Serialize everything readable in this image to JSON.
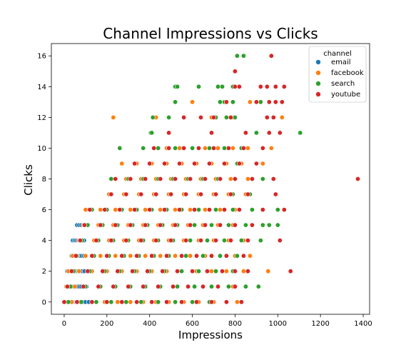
{
  "chart_data": {
    "type": "scatter",
    "title": "Channel Impressions vs Clicks",
    "xlabel": "Impressions",
    "ylabel": "Clicks",
    "xlim": [
      -60,
      1430
    ],
    "ylim": [
      -0.8,
      16.8
    ],
    "xticks": [
      0,
      200,
      400,
      600,
      800,
      1000,
      1200,
      1400
    ],
    "yticks": [
      0,
      2,
      4,
      6,
      8,
      10,
      12,
      14,
      16
    ],
    "grid": false,
    "legend": {
      "title": "channel",
      "placement": "top-right"
    },
    "series": [
      {
        "name": "email",
        "color": "#1f77b4",
        "x": [
          2,
          6,
          10,
          14,
          18,
          22,
          26,
          30,
          34,
          38,
          42,
          46,
          50,
          54,
          58,
          62,
          70,
          80,
          90,
          100,
          115,
          8,
          14,
          20,
          26,
          32,
          38,
          44,
          50,
          56,
          62,
          70,
          80,
          90,
          105,
          14,
          20,
          26,
          32,
          38,
          44,
          50,
          58,
          66,
          74,
          84,
          95,
          110,
          35,
          42,
          50,
          58,
          66,
          74,
          82,
          92,
          40,
          48,
          56,
          64,
          72,
          82,
          94,
          60,
          70,
          80,
          90,
          100,
          112,
          115
        ],
        "y": [
          0,
          0,
          0,
          0,
          0,
          0,
          0,
          0,
          0,
          0,
          0,
          0,
          0,
          0,
          0,
          0,
          0,
          0,
          0,
          0,
          0,
          1,
          1,
          1,
          1,
          1,
          1,
          1,
          1,
          1,
          1,
          1,
          1,
          1,
          1,
          2,
          2,
          2,
          2,
          2,
          2,
          2,
          2,
          2,
          2,
          2,
          2,
          2,
          3,
          3,
          3,
          3,
          3,
          3,
          3,
          3,
          4,
          4,
          4,
          4,
          4,
          4,
          4,
          5,
          5,
          5,
          5,
          5,
          5,
          6
        ]
      },
      {
        "name": "facebook",
        "color": "#ff7f0e",
        "x": [
          5,
          35,
          75,
          130,
          190,
          250,
          310,
          370,
          430,
          490,
          560,
          630,
          700,
          760,
          810,
          10,
          50,
          100,
          160,
          230,
          300,
          370,
          440,
          510,
          580,
          650,
          720,
          790,
          20,
          70,
          130,
          200,
          270,
          340,
          410,
          480,
          550,
          620,
          690,
          760,
          840,
          955,
          40,
          100,
          170,
          240,
          310,
          380,
          450,
          520,
          590,
          660,
          730,
          800,
          870,
          70,
          140,
          210,
          280,
          350,
          420,
          490,
          560,
          630,
          700,
          770,
          840,
          90,
          160,
          230,
          300,
          370,
          440,
          510,
          580,
          650,
          720,
          790,
          100,
          170,
          240,
          310,
          380,
          450,
          520,
          590,
          660,
          730,
          800,
          880,
          210,
          280,
          350,
          420,
          490,
          560,
          630,
          700,
          770,
          850,
          220,
          290,
          360,
          430,
          500,
          570,
          640,
          710,
          780,
          860,
          270,
          340,
          410,
          480,
          550,
          620,
          690,
          760,
          830,
          930,
          420,
          480,
          540,
          600,
          660,
          720,
          790,
          860,
          970,
          230,
          430,
          640,
          690,
          790,
          1020,
          600,
          870
        ],
        "y": [
          0,
          0,
          0,
          0,
          0,
          0,
          0,
          0,
          0,
          0,
          0,
          0,
          0,
          0,
          0,
          1,
          1,
          1,
          1,
          1,
          1,
          1,
          1,
          1,
          1,
          1,
          1,
          1,
          2,
          2,
          2,
          2,
          2,
          2,
          2,
          2,
          2,
          2,
          2,
          2,
          2,
          2,
          3,
          3,
          3,
          3,
          3,
          3,
          3,
          3,
          3,
          3,
          3,
          3,
          3,
          4,
          4,
          4,
          4,
          4,
          4,
          4,
          4,
          4,
          4,
          4,
          4,
          5,
          5,
          5,
          5,
          5,
          5,
          5,
          5,
          5,
          5,
          5,
          6,
          6,
          6,
          6,
          6,
          6,
          6,
          6,
          6,
          6,
          6,
          6,
          7,
          7,
          7,
          7,
          7,
          7,
          7,
          7,
          7,
          7,
          8,
          8,
          8,
          8,
          8,
          8,
          8,
          8,
          8,
          8,
          9,
          9,
          9,
          9,
          9,
          9,
          9,
          9,
          9,
          9,
          10,
          10,
          10,
          10,
          10,
          10,
          10,
          10,
          10,
          12,
          12,
          12,
          12,
          12,
          12,
          13,
          13
        ]
      },
      {
        "name": "search",
        "color": "#2ca02c",
        "x": [
          20,
          80,
          150,
          220,
          290,
          360,
          440,
          520,
          600,
          680,
          760,
          830,
          30,
          100,
          170,
          240,
          310,
          380,
          450,
          530,
          610,
          690,
          770,
          850,
          910,
          45,
          120,
          190,
          260,
          330,
          400,
          470,
          550,
          630,
          710,
          790,
          60,
          140,
          210,
          280,
          350,
          420,
          490,
          570,
          650,
          730,
          810,
          85,
          160,
          230,
          300,
          370,
          440,
          510,
          590,
          670,
          750,
          830,
          920,
          110,
          180,
          250,
          320,
          390,
          460,
          530,
          610,
          690,
          770,
          850,
          930,
          960,
          1000,
          130,
          200,
          270,
          340,
          410,
          480,
          550,
          630,
          710,
          790,
          880,
          1000,
          220,
          290,
          360,
          430,
          500,
          570,
          640,
          710,
          790,
          870,
          220,
          300,
          370,
          440,
          510,
          580,
          650,
          720,
          800,
          930,
          330,
          400,
          470,
          540,
          610,
          680,
          750,
          810,
          260,
          370,
          440,
          520,
          600,
          680,
          750,
          830,
          405,
          410,
          900,
          1105,
          415,
          490,
          560,
          640,
          710,
          760,
          800,
          520,
          730,
          750,
          760,
          790,
          920,
          520,
          630,
          720,
          790,
          530,
          740,
          810,
          840
        ],
        "y": [
          0,
          0,
          0,
          0,
          0,
          0,
          0,
          0,
          0,
          0,
          0,
          0,
          1,
          1,
          1,
          1,
          1,
          1,
          1,
          1,
          1,
          1,
          1,
          1,
          1,
          2,
          2,
          2,
          2,
          2,
          2,
          2,
          2,
          2,
          2,
          2,
          3,
          3,
          3,
          3,
          3,
          3,
          3,
          3,
          3,
          3,
          3,
          4,
          4,
          4,
          4,
          4,
          4,
          4,
          4,
          4,
          4,
          4,
          4,
          5,
          5,
          5,
          5,
          5,
          5,
          5,
          5,
          5,
          5,
          5,
          5,
          5,
          5,
          6,
          6,
          6,
          6,
          6,
          6,
          6,
          6,
          6,
          6,
          6,
          6,
          7,
          7,
          7,
          7,
          7,
          7,
          7,
          7,
          7,
          7,
          8,
          8,
          8,
          8,
          8,
          8,
          8,
          8,
          8,
          8,
          9,
          9,
          9,
          9,
          9,
          9,
          9,
          9,
          10,
          10,
          10,
          10,
          10,
          10,
          10,
          10,
          11,
          11,
          11,
          11,
          12,
          12,
          12,
          12,
          12,
          12,
          12,
          13,
          13,
          13,
          13,
          13,
          13,
          14,
          14,
          14,
          14,
          14,
          14,
          16,
          16
        ]
      },
      {
        "name": "youtube",
        "color": "#d62728",
        "x": [
          0,
          60,
          130,
          200,
          270,
          340,
          410,
          480,
          550,
          620,
          690,
          760,
          830,
          15,
          90,
          160,
          230,
          300,
          370,
          440,
          510,
          580,
          650,
          720,
          800,
          35,
          110,
          180,
          250,
          320,
          390,
          460,
          530,
          600,
          670,
          740,
          800,
          860,
          1060,
          55,
          130,
          200,
          270,
          340,
          410,
          480,
          550,
          620,
          690,
          760,
          840,
          75,
          150,
          220,
          290,
          360,
          430,
          500,
          570,
          640,
          710,
          780,
          860,
          1010,
          95,
          170,
          240,
          310,
          380,
          450,
          520,
          590,
          660,
          730,
          800,
          880,
          120,
          190,
          260,
          330,
          400,
          470,
          540,
          610,
          680,
          750,
          820,
          930,
          1030,
          220,
          290,
          360,
          430,
          500,
          570,
          640,
          710,
          780,
          860,
          990,
          240,
          310,
          380,
          450,
          520,
          590,
          660,
          730,
          800,
          880,
          980,
          1375,
          330,
          400,
          470,
          540,
          610,
          680,
          750,
          820,
          900,
          420,
          490,
          560,
          630,
          700,
          770,
          840,
          930,
          490,
          690,
          850,
          960,
          1010,
          560,
          640,
          700,
          780,
          950,
          980,
          760,
          900,
          960,
          990,
          1020,
          800,
          950,
          820,
          920,
          990,
          1030,
          800,
          970
        ],
        "y": [
          0,
          0,
          0,
          0,
          0,
          0,
          0,
          0,
          0,
          0,
          0,
          0,
          0,
          1,
          1,
          1,
          1,
          1,
          1,
          1,
          1,
          1,
          1,
          1,
          1,
          2,
          2,
          2,
          2,
          2,
          2,
          2,
          2,
          2,
          2,
          2,
          2,
          2,
          2,
          3,
          3,
          3,
          3,
          3,
          3,
          3,
          3,
          3,
          3,
          3,
          3,
          4,
          4,
          4,
          4,
          4,
          4,
          4,
          4,
          4,
          4,
          4,
          4,
          4,
          5,
          5,
          5,
          5,
          5,
          5,
          5,
          5,
          5,
          5,
          5,
          5,
          6,
          6,
          6,
          6,
          6,
          6,
          6,
          6,
          6,
          6,
          6,
          6,
          6,
          7,
          7,
          7,
          7,
          7,
          7,
          7,
          7,
          7,
          7,
          7,
          8,
          8,
          8,
          8,
          8,
          8,
          8,
          8,
          8,
          8,
          8,
          8,
          9,
          9,
          9,
          9,
          9,
          9,
          9,
          9,
          9,
          10,
          10,
          10,
          10,
          10,
          10,
          10,
          10,
          11,
          11,
          11,
          11,
          11,
          12,
          12,
          12,
          12,
          12,
          12,
          13,
          13,
          13,
          13,
          13,
          14,
          14,
          14,
          14,
          14,
          14,
          15,
          16
        ]
      }
    ]
  }
}
